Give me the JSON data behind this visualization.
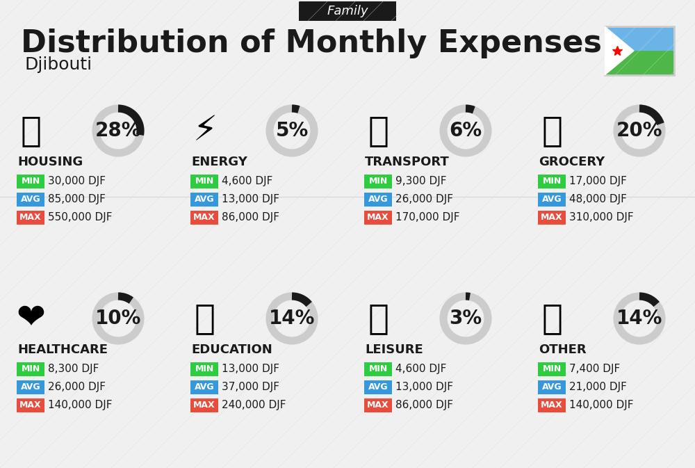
{
  "title": "Distribution of Monthly Expenses",
  "subtitle": "Djibouti",
  "family_label": "Family",
  "bg_color": "#f0f0f0",
  "categories": [
    {
      "name": "HOUSING",
      "pct": 28,
      "emoji": "🏢",
      "min": "30,000 DJF",
      "avg": "85,000 DJF",
      "max": "550,000 DJF",
      "row": 0,
      "col": 0
    },
    {
      "name": "ENERGY",
      "pct": 5,
      "emoji": "⚡",
      "min": "4,600 DJF",
      "avg": "13,000 DJF",
      "max": "86,000 DJF",
      "row": 0,
      "col": 1
    },
    {
      "name": "TRANSPORT",
      "pct": 6,
      "emoji": "🚌",
      "min": "9,300 DJF",
      "avg": "26,000 DJF",
      "max": "170,000 DJF",
      "row": 0,
      "col": 2
    },
    {
      "name": "GROCERY",
      "pct": 20,
      "emoji": "🛒",
      "min": "17,000 DJF",
      "avg": "48,000 DJF",
      "max": "310,000 DJF",
      "row": 0,
      "col": 3
    },
    {
      "name": "HEALTHCARE",
      "pct": 10,
      "emoji": "❤️",
      "min": "8,300 DJF",
      "avg": "26,000 DJF",
      "max": "140,000 DJF",
      "row": 1,
      "col": 0
    },
    {
      "name": "EDUCATION",
      "pct": 14,
      "emoji": "🎓",
      "min": "13,000 DJF",
      "avg": "37,000 DJF",
      "max": "240,000 DJF",
      "row": 1,
      "col": 1
    },
    {
      "name": "LEISURE",
      "pct": 3,
      "emoji": "🛍️",
      "min": "4,600 DJF",
      "avg": "13,000 DJF",
      "max": "86,000 DJF",
      "row": 1,
      "col": 2
    },
    {
      "name": "OTHER",
      "pct": 14,
      "emoji": "💰",
      "min": "7,400 DJF",
      "avg": "21,000 DJF",
      "max": "140,000 DJF",
      "row": 1,
      "col": 3
    }
  ],
  "min_color": "#2ecc40",
  "avg_color": "#3498db",
  "max_color": "#e74c3c",
  "arc_color_filled": "#1a1a1a",
  "arc_color_empty": "#cccccc",
  "title_fontsize": 32,
  "subtitle_fontsize": 18,
  "category_fontsize": 13,
  "pct_fontsize": 20,
  "value_fontsize": 11
}
